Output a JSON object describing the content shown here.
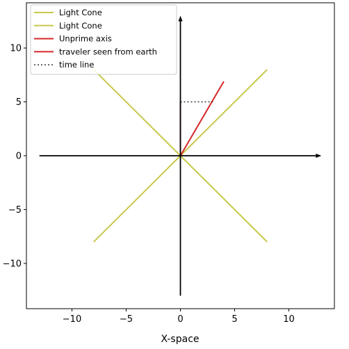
{
  "chart_data": {
    "type": "line",
    "xlabel": "X-space",
    "ylabel": "",
    "xlim": [
      -14.2,
      14.2
    ],
    "ylim": [
      -14.2,
      14.2
    ],
    "x_ticks": [
      -10,
      -5,
      0,
      5,
      10
    ],
    "y_ticks": [
      -10,
      -5,
      0,
      5,
      10
    ],
    "x_tick_labels": [
      "−10",
      "−5",
      "0",
      "5",
      "10"
    ],
    "y_tick_labels": [
      "−10",
      "−5",
      "0",
      "5",
      "10"
    ],
    "grid": false,
    "legend_position": "top-left",
    "series": [
      {
        "name": "Light Cone",
        "color": "#c8c84a",
        "style": "solid",
        "x": [
          -8,
          8
        ],
        "y": [
          8,
          -8
        ]
      },
      {
        "name": "Light Cone",
        "color": "#c8c84a",
        "style": "solid",
        "x": [
          -8,
          8
        ],
        "y": [
          -8,
          8
        ]
      },
      {
        "name": "Unprime axis",
        "color": "#d62728",
        "style": "solid",
        "x": [
          0,
          0
        ],
        "y": [
          0,
          5
        ]
      },
      {
        "name": "traveler seen from earth",
        "color": "#d62728",
        "style": "solid",
        "x": [
          0,
          4
        ],
        "y": [
          0,
          6.9
        ]
      },
      {
        "name": "time line",
        "color": "#333333",
        "style": "dotted",
        "x": [
          0,
          3
        ],
        "y": [
          5,
          5
        ]
      }
    ],
    "arrows": [
      {
        "from": [
          -13,
          0
        ],
        "to": [
          13,
          0
        ],
        "color": "#000000"
      },
      {
        "from": [
          0,
          -13
        ],
        "to": [
          0,
          13
        ],
        "color": "#000000"
      }
    ]
  }
}
